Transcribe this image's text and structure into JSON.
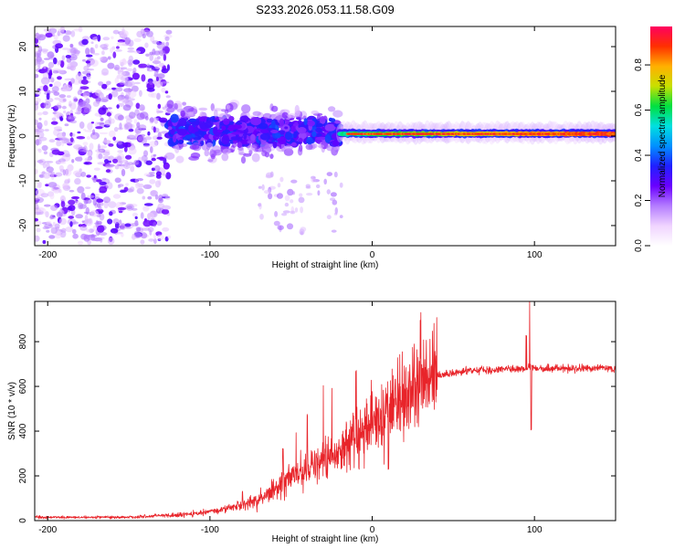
{
  "figure_title": "S233.2026.053.11.58.G09",
  "chart_data": [
    {
      "type": "heatmap",
      "title": "S233.2026.053.11.58.G09",
      "xlabel": "Height of straight line (km)",
      "ylabel": "Frequency (Hz)",
      "xlim": [
        -208,
        150
      ],
      "ylim": [
        -24.5,
        24.5
      ],
      "xticks": [
        -200,
        -100,
        0,
        100
      ],
      "yticks": [
        -20,
        -10,
        0,
        10,
        20
      ],
      "colorbar": {
        "label": "Normalized spectral amplitude",
        "range": [
          0.0,
          0.97
        ],
        "ticks": [
          "0.0",
          "0.2",
          "0.4",
          "0.6",
          "0.8"
        ],
        "colors": [
          "#ffffff",
          "#f0d4ff",
          "#b47cff",
          "#6a00ff",
          "#2020ff",
          "#0090ff",
          "#00e0e0",
          "#00e040",
          "#c8e000",
          "#ffb000",
          "#ff3000",
          "#ff0060"
        ]
      },
      "description_segments": [
        {
          "x_range": [
            -208,
            -125
          ],
          "freq_spread": 24,
          "mean_amplitude": 0.15,
          "pattern": "scattered blobs"
        },
        {
          "x_range": [
            -125,
            -20
          ],
          "freq_spread": 10,
          "mean_amplitude": 0.3,
          "pattern": "clustered band around 0 Hz"
        },
        {
          "x_range": [
            -20,
            150
          ],
          "freq_spread": 2,
          "mean_amplitude": 0.85,
          "pattern": "narrow strong line at ~0.5 Hz"
        }
      ]
    },
    {
      "type": "line",
      "xlabel": "Height of straight line (km)",
      "ylabel": "SNR (10 * v/v)",
      "xlim": [
        -208,
        150
      ],
      "ylim": [
        0,
        980
      ],
      "xticks": [
        -200,
        -100,
        0,
        100
      ],
      "yticks": [
        0,
        200,
        400,
        600,
        800
      ],
      "color": "#e8242a",
      "trend": {
        "x": [
          -208,
          -150,
          -120,
          -100,
          -85,
          -70,
          -60,
          -50,
          -40,
          -30,
          -20,
          -10,
          0,
          10,
          20,
          30,
          40,
          50,
          60,
          80,
          95,
          98,
          100,
          120,
          150
        ],
        "y": [
          15,
          15,
          25,
          40,
          60,
          90,
          150,
          200,
          230,
          260,
          300,
          380,
          430,
          480,
          560,
          620,
          650,
          660,
          670,
          675,
          680,
          700,
          680,
          680,
          680
        ]
      },
      "spikes": [
        {
          "x": -80,
          "y": 130
        },
        {
          "x": -55,
          "y": 320
        },
        {
          "x": -47,
          "y": 400
        },
        {
          "x": -40,
          "y": 470
        },
        {
          "x": -30,
          "y": 600
        },
        {
          "x": -25,
          "y": 590
        },
        {
          "x": -10,
          "y": 670
        },
        {
          "x": -5,
          "y": 230
        },
        {
          "x": 10,
          "y": 230
        },
        {
          "x": 95,
          "y": 830
        },
        {
          "x": 97,
          "y": 975
        },
        {
          "x": 98,
          "y": 410
        }
      ]
    }
  ]
}
